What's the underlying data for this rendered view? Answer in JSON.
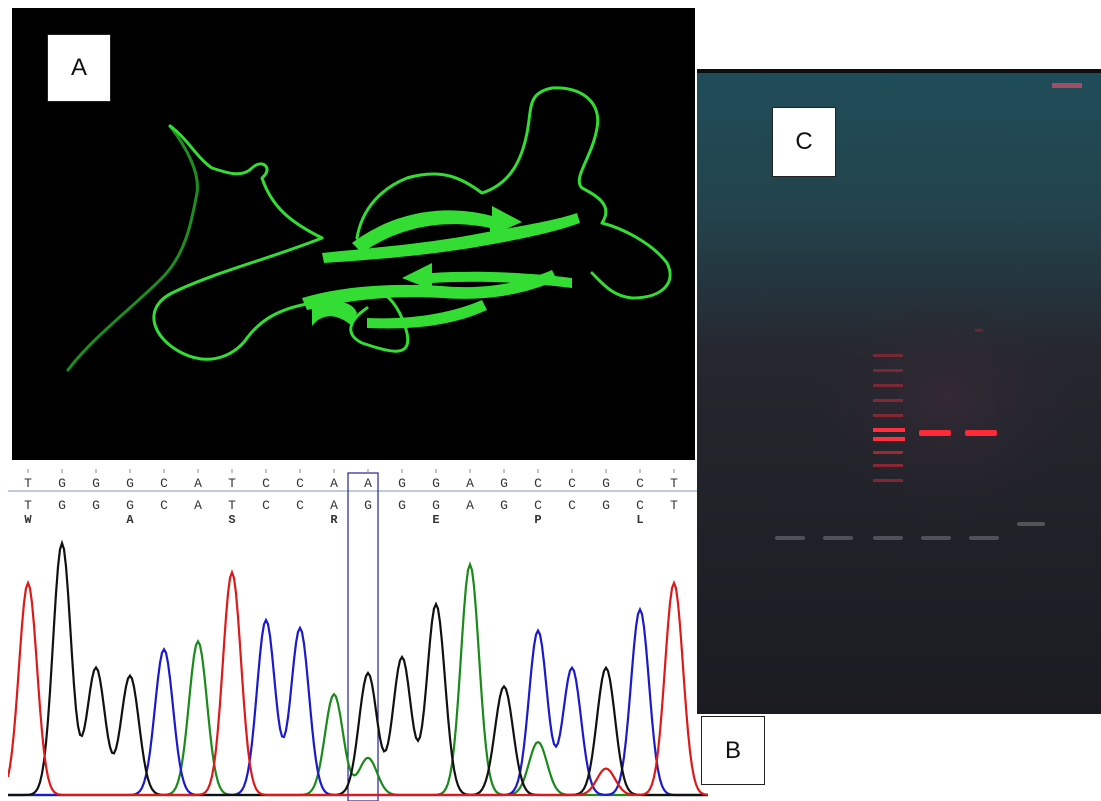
{
  "panel_labels": {
    "a": "A",
    "b": "B",
    "c": "C"
  },
  "chromatogram": {
    "bases": [
      "T",
      "G",
      "G",
      "G",
      "C",
      "A",
      "T",
      "C",
      "C",
      "A",
      "A",
      "G",
      "G",
      "A",
      "G",
      "C",
      "C",
      "G",
      "C",
      "T"
    ],
    "called": [
      "T",
      "G",
      "G",
      "G",
      "C",
      "A",
      "T",
      "C",
      "C",
      "A",
      "G",
      "G",
      "G",
      "A",
      "G",
      "C",
      "C",
      "G",
      "C",
      "T"
    ],
    "amino_acids": [
      "W",
      "",
      "",
      "A",
      "",
      "",
      "S",
      "",
      "",
      "R",
      "",
      "",
      "E",
      "",
      "",
      "P",
      "",
      "",
      "L",
      ""
    ]
  },
  "colors": {
    "A": "#1a8a1a",
    "C": "#1a1acc",
    "G": "#111111",
    "T": "#dd1a1a",
    "ribbon": "#33dd33",
    "gel_top": "#1f4650",
    "gel_bottom": "#1c1c24",
    "band": "#ff2a2a"
  }
}
